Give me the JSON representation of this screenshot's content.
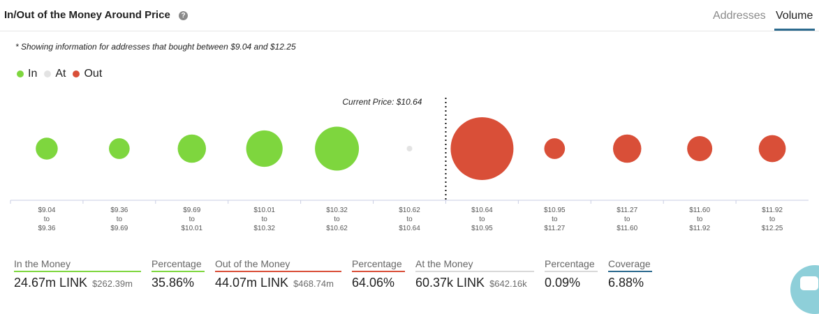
{
  "header": {
    "title": "In/Out of the Money Around Price",
    "help_icon": "question-circle-icon",
    "tabs": [
      {
        "label": "Addresses",
        "active": false
      },
      {
        "label": "Volume",
        "active": true
      }
    ]
  },
  "note": "* Showing information for addresses that bought between $9.04 and $12.25",
  "colors": {
    "in": "#7ed63e",
    "at": "#e3e3e3",
    "out": "#d94f38",
    "accent": "#2c6a8e"
  },
  "chart_data": {
    "type": "bubble",
    "legend": [
      {
        "name": "In",
        "color": "#7ed63e"
      },
      {
        "name": "At",
        "color": "#e3e3e3"
      },
      {
        "name": "Out",
        "color": "#d94f38"
      }
    ],
    "legend_position": "top-left",
    "current_price_label": "Current Price: $10.64",
    "current_price_index": 6,
    "categories": [
      {
        "from": "$9.04",
        "to": "$9.36",
        "status": "in",
        "relative_size": 0.35
      },
      {
        "from": "$9.36",
        "to": "$9.69",
        "status": "in",
        "relative_size": 0.33
      },
      {
        "from": "$9.69",
        "to": "$10.01",
        "status": "in",
        "relative_size": 0.45
      },
      {
        "from": "$10.01",
        "to": "$10.32",
        "status": "in",
        "relative_size": 0.58
      },
      {
        "from": "$10.32",
        "to": "$10.62",
        "status": "in",
        "relative_size": 0.7
      },
      {
        "from": "$10.62",
        "to": "$10.64",
        "status": "at",
        "relative_size": 0.08
      },
      {
        "from": "$10.64",
        "to": "$10.95",
        "status": "out",
        "relative_size": 1.0
      },
      {
        "from": "$10.95",
        "to": "$11.27",
        "status": "out",
        "relative_size": 0.33
      },
      {
        "from": "$11.27",
        "to": "$11.60",
        "status": "out",
        "relative_size": 0.45
      },
      {
        "from": "$11.60",
        "to": "$11.92",
        "status": "out",
        "relative_size": 0.4
      },
      {
        "from": "$11.92",
        "to": "$12.25",
        "status": "out",
        "relative_size": 0.43
      }
    ],
    "connector": "to"
  },
  "stats": [
    {
      "label": "In the Money",
      "value": "24.67m LINK",
      "sub": "$262.39m",
      "color": "#7ed63e"
    },
    {
      "label": "Percentage",
      "value": "35.86%",
      "sub": "",
      "color": "#7ed63e"
    },
    {
      "label": "Out of the Money",
      "value": "44.07m LINK",
      "sub": "$468.74m",
      "color": "#d94f38"
    },
    {
      "label": "Percentage",
      "value": "64.06%",
      "sub": "",
      "color": "#d94f38"
    },
    {
      "label": "At the Money",
      "value": "60.37k LINK",
      "sub": "$642.16k",
      "color": "#d8d8d8"
    },
    {
      "label": "Percentage",
      "value": "0.09%",
      "sub": "",
      "color": "#d8d8d8"
    },
    {
      "label": "Coverage",
      "value": "6.88%",
      "sub": "",
      "color": "#2c6a8e"
    }
  ],
  "chat_icon": "chat-bubble-icon"
}
